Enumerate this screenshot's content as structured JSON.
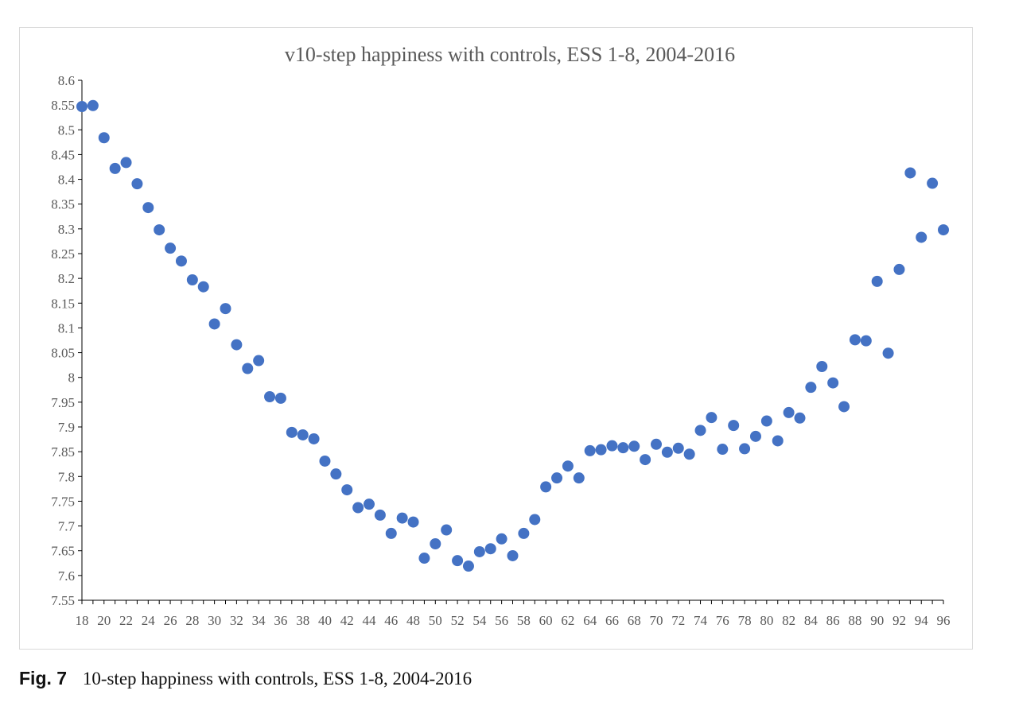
{
  "caption": {
    "label": "Fig. 7",
    "text": "10-step happiness with controls, ESS 1-8, 2004-2016"
  },
  "colors": {
    "marker": "#4472c4",
    "axis": "#000000",
    "text": "#595959",
    "frame": "#d9d9d9"
  },
  "chart_data": {
    "type": "scatter",
    "title": "v10-step happiness with controls, ESS 1-8, 2004-2016",
    "xlabel": "",
    "ylabel": "",
    "xlim": [
      18,
      96
    ],
    "ylim": [
      7.55,
      8.6
    ],
    "xticks": [
      18,
      20,
      22,
      24,
      26,
      28,
      30,
      32,
      34,
      36,
      38,
      40,
      42,
      44,
      46,
      48,
      50,
      52,
      54,
      56,
      58,
      60,
      62,
      64,
      66,
      68,
      70,
      72,
      74,
      76,
      78,
      80,
      82,
      84,
      86,
      88,
      90,
      92,
      94,
      96
    ],
    "yticks": [
      "7.55",
      "7.6",
      "7.65",
      "7.7",
      "7.75",
      "7.8",
      "7.85",
      "7.9",
      "7.95",
      "8",
      "8.05",
      "8.1",
      "8.15",
      "8.2",
      "8.25",
      "8.3",
      "8.35",
      "8.4",
      "8.45",
      "8.5",
      "8.55",
      "8.6"
    ],
    "grid": false,
    "legend": "none",
    "series": [
      {
        "x": [
          18,
          19,
          20,
          21,
          22,
          23,
          24,
          25,
          26,
          27,
          28,
          29,
          30,
          31,
          32,
          33,
          34,
          35,
          36,
          37,
          38,
          39,
          40,
          41,
          42,
          43,
          44,
          45,
          46,
          47,
          48,
          49,
          50,
          51,
          52,
          53,
          54,
          55,
          56,
          57,
          58,
          59,
          60,
          61,
          62,
          63,
          64,
          65,
          66,
          67,
          68,
          69,
          70,
          71,
          72,
          73,
          74,
          75,
          76,
          77,
          78,
          79,
          80,
          81,
          82,
          83,
          84,
          85,
          86,
          87,
          88,
          89,
          90,
          91,
          92,
          93,
          94,
          95,
          96
        ],
        "y": [
          8.547,
          8.549,
          8.484,
          8.422,
          8.434,
          8.391,
          8.343,
          8.298,
          8.261,
          8.235,
          8.197,
          8.183,
          8.108,
          8.139,
          8.066,
          8.018,
          8.034,
          7.961,
          7.958,
          7.889,
          7.884,
          7.876,
          7.831,
          7.805,
          7.773,
          7.737,
          7.744,
          7.722,
          7.685,
          7.716,
          7.708,
          7.635,
          7.664,
          7.692,
          7.63,
          7.619,
          7.648,
          7.654,
          7.674,
          7.64,
          7.685,
          7.713,
          7.779,
          7.797,
          7.821,
          7.797,
          7.852,
          7.854,
          7.862,
          7.858,
          7.861,
          7.834,
          7.865,
          7.849,
          7.857,
          7.845,
          7.893,
          7.919,
          7.855,
          7.903,
          7.856,
          7.881,
          7.912,
          7.872,
          7.929,
          7.918,
          7.98,
          8.022,
          7.989,
          7.941,
          8.076,
          8.074,
          8.194,
          8.049,
          8.218,
          8.413,
          8.283,
          8.392,
          8.298
        ]
      }
    ]
  }
}
